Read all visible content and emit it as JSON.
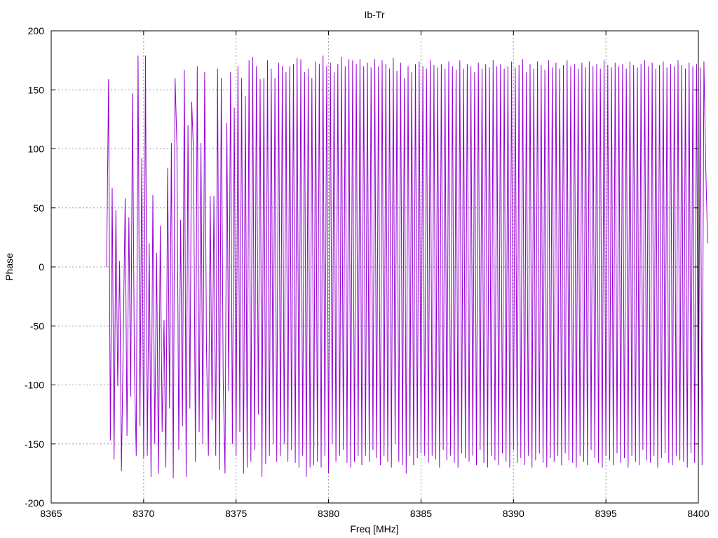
{
  "chart_data": {
    "type": "line",
    "title": "Ib-Tr",
    "xlabel": "Freq [MHz]",
    "ylabel": "Phase",
    "xlim": [
      8365,
      8400
    ],
    "ylim": [
      -200,
      200
    ],
    "x_ticks": [
      8365,
      8370,
      8375,
      8380,
      8385,
      8390,
      8395,
      8400
    ],
    "y_ticks": [
      -200,
      -150,
      -100,
      -50,
      0,
      50,
      100,
      150,
      200
    ],
    "grid": true,
    "legend": "none",
    "line_color": "#9400d3",
    "series": [
      {
        "x_start": 8368.0,
        "x_step": 0.1,
        "values": [
          0,
          159,
          -147,
          67,
          -163,
          48,
          -101,
          5,
          -173,
          -60,
          58,
          -143,
          42,
          -110,
          147,
          -85,
          -160,
          179,
          -135,
          92,
          -162,
          179,
          -160,
          20,
          -178,
          61,
          -150,
          12,
          -175,
          35,
          -140,
          -45,
          -170,
          84,
          -120,
          105,
          -179,
          160,
          103,
          -155,
          40,
          -135,
          167,
          -178,
          120,
          -120,
          140,
          95,
          -165,
          170,
          -140,
          105,
          -150,
          165,
          -70,
          -160,
          60,
          -130,
          60,
          -160,
          168,
          -172,
          160,
          -95,
          -175,
          122,
          -105,
          165,
          -150,
          135,
          -160,
          170,
          -140,
          160,
          -175,
          145,
          -170,
          175,
          -165,
          178,
          -155,
          170,
          -125,
          159,
          -178,
          160,
          -167,
          175,
          -160,
          168,
          -150,
          160,
          -165,
          173,
          -160,
          170,
          -150,
          165,
          -165,
          170,
          -155,
          172,
          -166,
          177,
          -170,
          176,
          -160,
          165,
          -178,
          168,
          -170,
          160,
          -168,
          174,
          -165,
          172,
          -170,
          179,
          -160,
          170,
          -175,
          173,
          -150,
          165,
          -165,
          172,
          -160,
          178,
          -155,
          170,
          -166,
          176,
          -170,
          175,
          -165,
          172,
          -160,
          176,
          -168,
          170,
          -160,
          173,
          -165,
          169,
          -155,
          176,
          -162,
          170,
          -168,
          175,
          -160,
          172,
          -165,
          168,
          -170,
          177,
          -150,
          166,
          -165,
          173,
          -168,
          160,
          -175,
          170,
          -160,
          165,
          -168,
          172,
          -162,
          174,
          -158,
          170,
          -160,
          168,
          -166,
          175,
          -160,
          171,
          -163,
          169,
          -170,
          172,
          -155,
          168,
          -164,
          174,
          -160,
          170,
          -166,
          167,
          -170,
          175,
          -158,
          168,
          -162,
          172,
          -165,
          170,
          -160,
          165,
          -168,
          173,
          -155,
          168,
          -166,
          172,
          -170,
          169,
          -160,
          175,
          -164,
          170,
          -168,
          172,
          -158,
          168,
          -165,
          170,
          -170,
          174,
          -155,
          169,
          -166,
          171,
          -162,
          176,
          -168,
          165,
          -160,
          172,
          -170,
          168,
          -164,
          174,
          -158,
          171,
          -166,
          167,
          -170,
          175,
          -162,
          169,
          -165,
          173,
          -160,
          168,
          -168,
          171,
          -158,
          175,
          -164,
          170,
          -166,
          172,
          -170,
          168,
          -160,
          173,
          -165,
          169,
          -168,
          174,
          -155,
          170,
          -162,
          172,
          -166,
          168,
          -170,
          175,
          -160,
          171,
          -164,
          169,
          -168,
          173,
          -158,
          170,
          -166,
          172,
          -162,
          168,
          -170,
          174,
          -160,
          171,
          -165,
          169,
          -168,
          172,
          -155,
          175,
          -164,
          170,
          -166,
          173,
          -160,
          168,
          -170,
          171,
          -162,
          174,
          -158,
          169,
          -166,
          172,
          -168,
          170,
          -160,
          175,
          -164,
          171,
          -165,
          168,
          -170,
          173,
          -158,
          170,
          -166,
          172,
          -162,
          169,
          -168,
          174,
          85,
          20
        ]
      }
    ]
  }
}
